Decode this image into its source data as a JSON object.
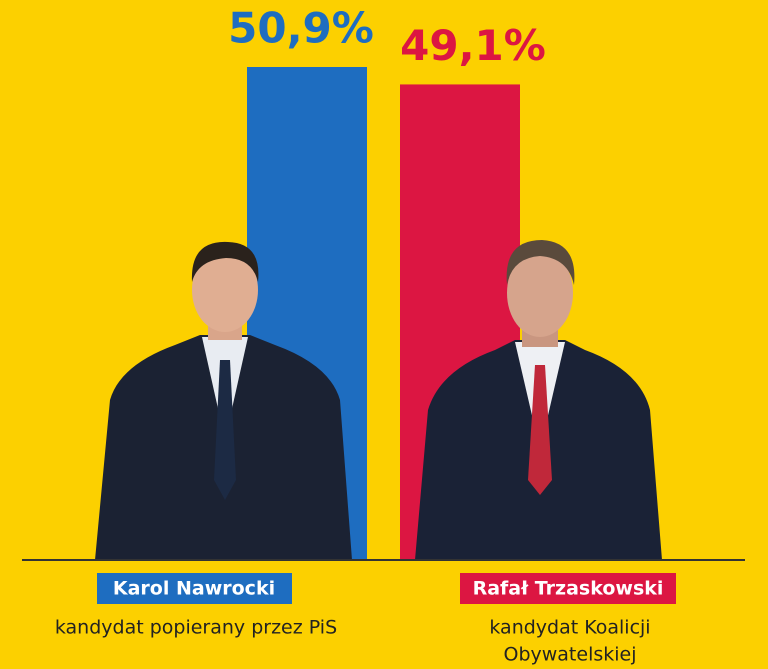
{
  "chart_data": {
    "type": "bar",
    "categories": [
      "Karol Nawrocki",
      "Rafał Trzaskowski"
    ],
    "descriptions": [
      [
        "kandydat popierany przez PiS"
      ],
      [
        "kandydat Koalicji",
        "Obywatelskiej"
      ]
    ],
    "values": [
      50.9,
      49.1
    ],
    "value_labels": [
      "50,9%",
      "49,1%"
    ],
    "colors": [
      "#1e6dc0",
      "#dc1642"
    ]
  }
}
